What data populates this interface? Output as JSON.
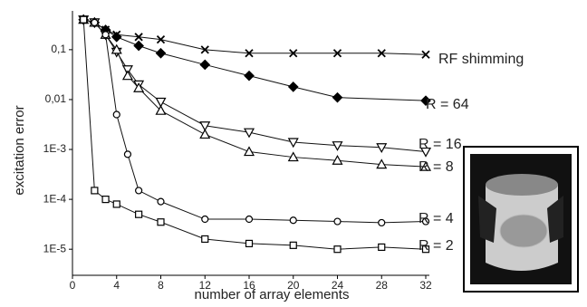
{
  "chart_data": {
    "type": "line",
    "log_y": true,
    "x_label": "number of array elements",
    "y_label": "excitation error",
    "xlim": [
      0,
      32
    ],
    "xticks": [
      0,
      4,
      8,
      12,
      16,
      20,
      24,
      28,
      32
    ],
    "ylim": [
      3e-06,
      0.6
    ],
    "yticks": [
      {
        "value": 0.1,
        "label": "0,1"
      },
      {
        "value": 0.01,
        "label": "0,01"
      },
      {
        "value": 0.001,
        "label": "1E-3"
      },
      {
        "value": 0.0001,
        "label": "1E-4"
      },
      {
        "value": 1e-05,
        "label": "1E-5"
      }
    ],
    "series": [
      {
        "name": "RF shimming",
        "color": "#111",
        "marker": "cross",
        "x": [
          1,
          2,
          3,
          4,
          6,
          8,
          12,
          16,
          20,
          24,
          28,
          32
        ],
        "values": [
          0.4,
          0.35,
          0.25,
          0.2,
          0.18,
          0.16,
          0.1,
          0.085,
          0.085,
          0.085,
          0.085,
          0.08
        ]
      },
      {
        "name": "R = 64",
        "color": "#111",
        "marker": "diamond",
        "x": [
          1,
          2,
          3,
          4,
          6,
          8,
          12,
          16,
          20,
          24,
          32
        ],
        "values": [
          0.4,
          0.35,
          0.25,
          0.18,
          0.12,
          0.085,
          0.05,
          0.03,
          0.018,
          0.011,
          0.0095
        ]
      },
      {
        "name": "R = 16",
        "color": "#111",
        "marker": "triangle-down",
        "x": [
          1,
          2,
          3,
          4,
          5,
          6,
          8,
          12,
          16,
          20,
          24,
          28,
          32
        ],
        "values": [
          0.4,
          0.35,
          0.2,
          0.09,
          0.04,
          0.02,
          0.009,
          0.003,
          0.0022,
          0.0014,
          0.0012,
          0.0011,
          0.0009
        ]
      },
      {
        "name": "R = 8",
        "color": "#111",
        "marker": "triangle-up",
        "x": [
          1,
          2,
          3,
          4,
          5,
          6,
          8,
          12,
          16,
          20,
          24,
          28,
          32
        ],
        "values": [
          0.4,
          0.35,
          0.2,
          0.1,
          0.03,
          0.017,
          0.006,
          0.002,
          0.0009,
          0.0007,
          0.0006,
          0.0005,
          0.00045
        ]
      },
      {
        "name": "R = 4",
        "color": "#111",
        "marker": "circle",
        "x": [
          1,
          2,
          3,
          4,
          5,
          6,
          8,
          12,
          16,
          20,
          24,
          28,
          32
        ],
        "values": [
          0.4,
          0.35,
          0.2,
          0.005,
          0.0008,
          0.00015,
          9e-05,
          4e-05,
          4e-05,
          3.8e-05,
          3.6e-05,
          3.4e-05,
          3.6e-05
        ]
      },
      {
        "name": "R = 2",
        "color": "#111",
        "marker": "square",
        "x": [
          1,
          2,
          3,
          4,
          6,
          8,
          12,
          16,
          20,
          24,
          28,
          32
        ],
        "values": [
          0.4,
          0.00015,
          0.0001,
          8e-05,
          5e-05,
          3.5e-05,
          1.6e-05,
          1.3e-05,
          1.2e-05,
          1e-05,
          1.1e-05,
          1e-05
        ]
      }
    ]
  }
}
